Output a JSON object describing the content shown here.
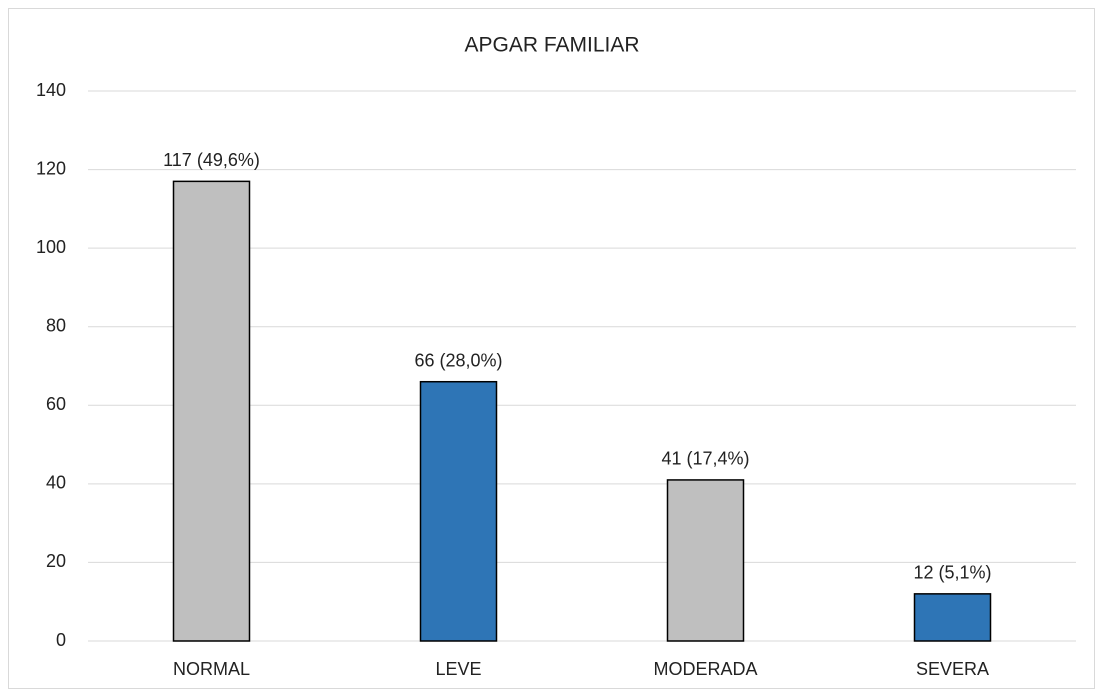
{
  "chart_data": {
    "type": "bar",
    "title": "APGAR FAMILIAR",
    "categories": [
      "NORMAL",
      "LEVE",
      "MODERADA",
      "SEVERA"
    ],
    "values": [
      117,
      66,
      41,
      12
    ],
    "value_labels": [
      "117 (49,6%)",
      "66 (28,0%)",
      "41 (17,4%)",
      "12 (5,1%)"
    ],
    "colors": [
      "#bfbfbf",
      "#2e75b6",
      "#bfbfbf",
      "#2e75b6"
    ],
    "ylim": [
      0,
      140
    ],
    "yticks": [
      0,
      20,
      40,
      60,
      80,
      100,
      120,
      140
    ],
    "grid": true
  }
}
